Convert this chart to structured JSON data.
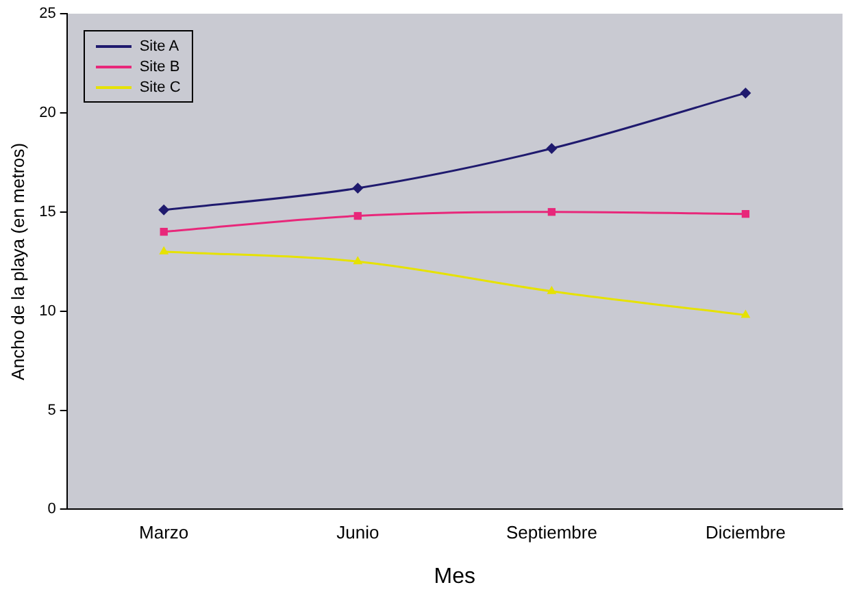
{
  "chart_data": {
    "type": "line",
    "xlabel": "Mes",
    "ylabel": "Ancho de la playa (en metros)",
    "categories": [
      "Marzo",
      "Junio",
      "Septiembre",
      "Diciembre"
    ],
    "series": [
      {
        "name": "Site A",
        "color": "#1f1a6e",
        "marker": "diamond",
        "values": [
          15.1,
          16.2,
          18.2,
          21.0
        ]
      },
      {
        "name": "Site B",
        "color": "#e8277a",
        "marker": "square",
        "values": [
          14.0,
          14.8,
          15.0,
          14.9
        ]
      },
      {
        "name": "Site C",
        "color": "#e6e200",
        "marker": "triangle",
        "values": [
          13.0,
          12.5,
          11.0,
          9.8
        ]
      }
    ],
    "ylim": [
      0,
      25
    ],
    "yticks": [
      0,
      5,
      10,
      15,
      20,
      25
    ],
    "grid": false,
    "legend": "top left"
  }
}
